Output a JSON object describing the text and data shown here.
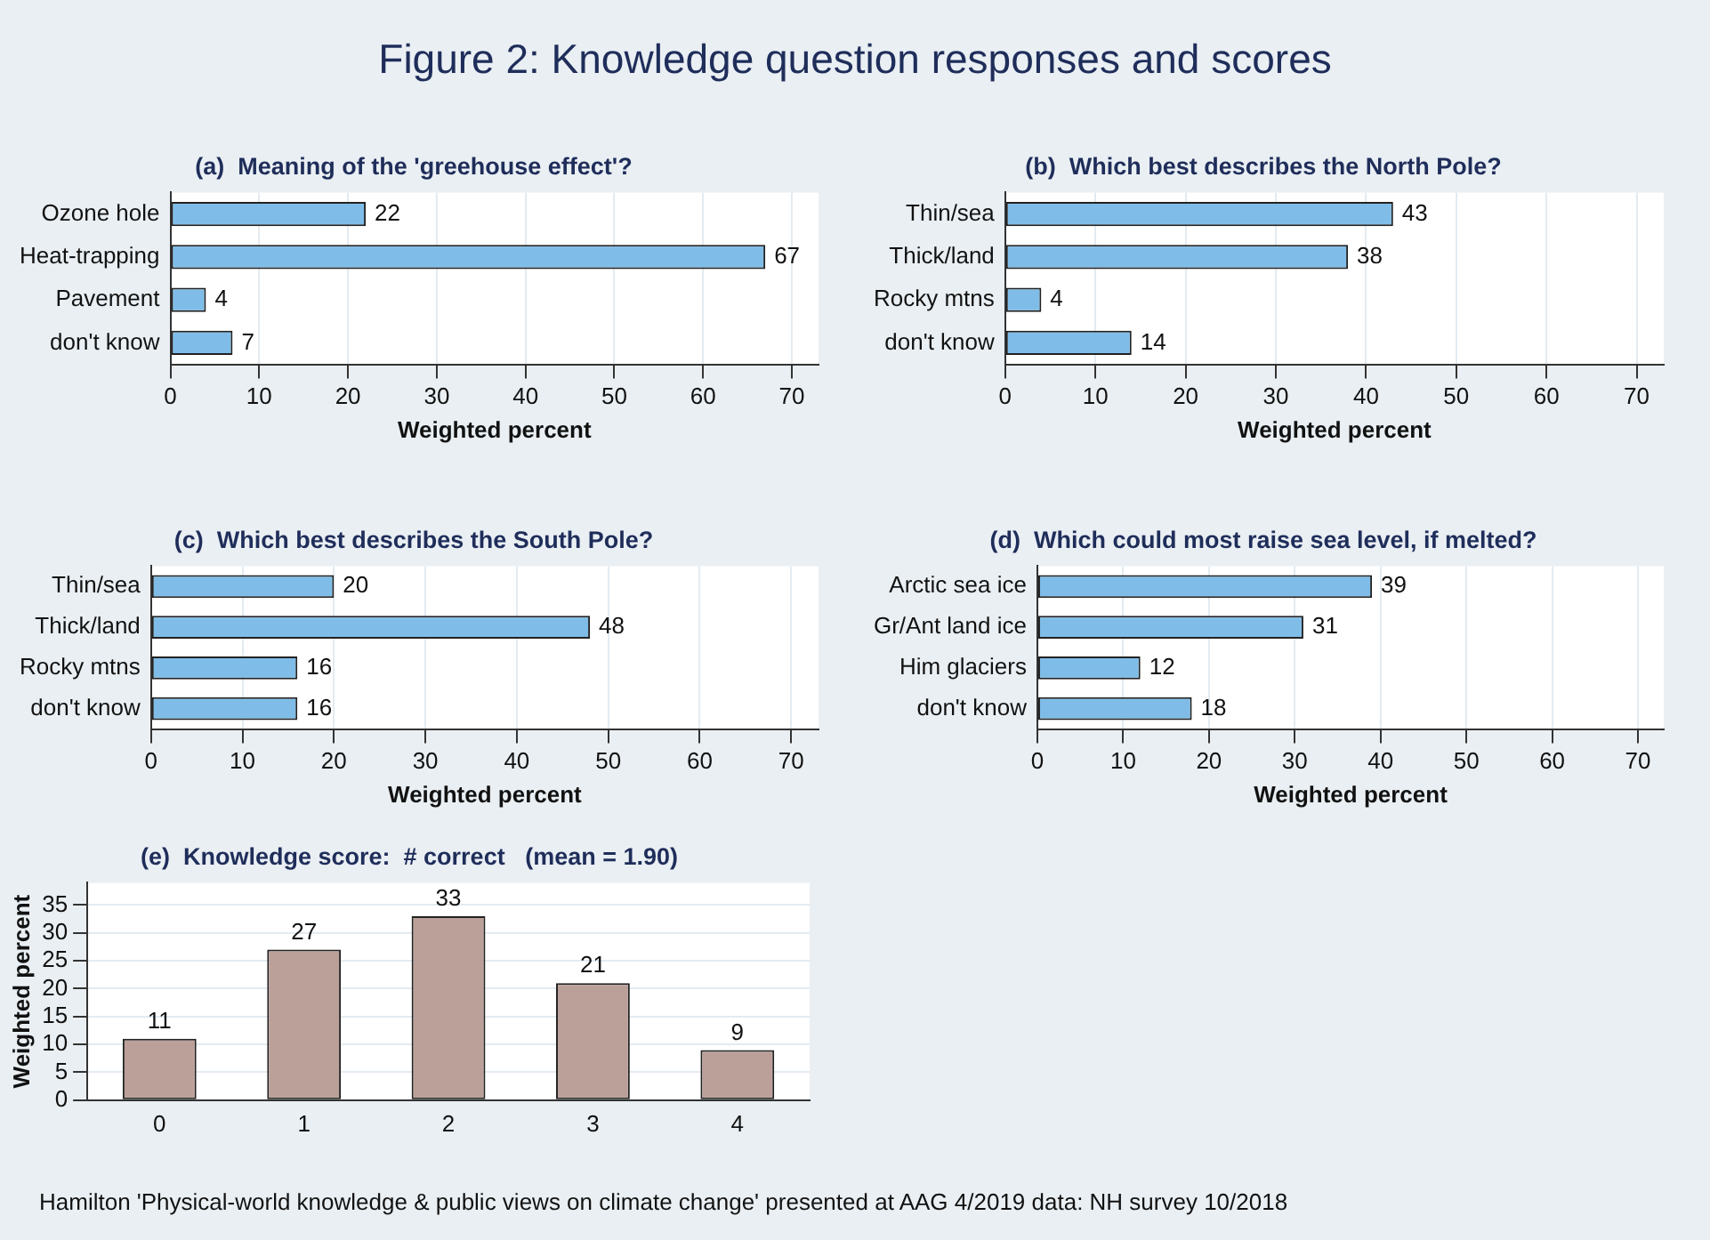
{
  "chart_data": [
    {
      "type": "bar",
      "orientation": "horizontal",
      "title": "(a)  Meaning of the 'greehouse effect'?",
      "categories": [
        "Ozone hole",
        "Heat-trapping",
        "Pavement",
        "don't know"
      ],
      "values": [
        22,
        67,
        4,
        7
      ],
      "color": "#7fbde8",
      "xlim": [
        0,
        73
      ],
      "xticks": [
        0,
        10,
        20,
        30,
        40,
        50,
        60,
        70
      ],
      "xlabel": "Weighted percent",
      "data_labels": true,
      "grid": "x"
    },
    {
      "type": "bar",
      "orientation": "horizontal",
      "title": "(b)  Which best describes the North Pole?",
      "categories": [
        "Thin/sea",
        "Thick/land",
        "Rocky mtns",
        "don't know"
      ],
      "values": [
        43,
        38,
        4,
        14
      ],
      "color": "#7fbde8",
      "xlim": [
        0,
        73
      ],
      "xticks": [
        0,
        10,
        20,
        30,
        40,
        50,
        60,
        70
      ],
      "xlabel": "Weighted percent",
      "data_labels": true,
      "grid": "x"
    },
    {
      "type": "bar",
      "orientation": "horizontal",
      "title": "(c)  Which best describes the South Pole?",
      "categories": [
        "Thin/sea",
        "Thick/land",
        "Rocky mtns",
        "don't know"
      ],
      "values": [
        20,
        48,
        16,
        16
      ],
      "color": "#7fbde8",
      "xlim": [
        0,
        73
      ],
      "xticks": [
        0,
        10,
        20,
        30,
        40,
        50,
        60,
        70
      ],
      "xlabel": "Weighted percent",
      "data_labels": true,
      "grid": "x"
    },
    {
      "type": "bar",
      "orientation": "horizontal",
      "title": "(d)  Which could most raise sea level, if melted?",
      "categories": [
        "Arctic sea ice",
        "Gr/Ant land ice",
        "Him glaciers",
        "don't know"
      ],
      "values": [
        39,
        31,
        12,
        18
      ],
      "color": "#7fbde8",
      "xlim": [
        0,
        73
      ],
      "xticks": [
        0,
        10,
        20,
        30,
        40,
        50,
        60,
        70
      ],
      "xlabel": "Weighted percent",
      "data_labels": true,
      "grid": "x"
    },
    {
      "type": "bar",
      "title": "(e)  Knowledge score:  # correct   (mean = 1.90)",
      "categories": [
        "0",
        "1",
        "2",
        "3",
        "4"
      ],
      "values": [
        11,
        27,
        33,
        21,
        9
      ],
      "color": "#bba09a",
      "ylim": [
        0,
        39
      ],
      "yticks": [
        0,
        5,
        10,
        15,
        20,
        25,
        30,
        35
      ],
      "ylabel": "Weighted percent",
      "data_labels": true,
      "grid": "y"
    },
    {
      "type": "other",
      "title": "Figure 2:  Knowledge question responses and scores",
      "annotations": [
        "Hamilton 'Physical-world knowledge & public views on climate change' presented at AAG 4/2019  data: NH survey 10/2018"
      ]
    }
  ]
}
